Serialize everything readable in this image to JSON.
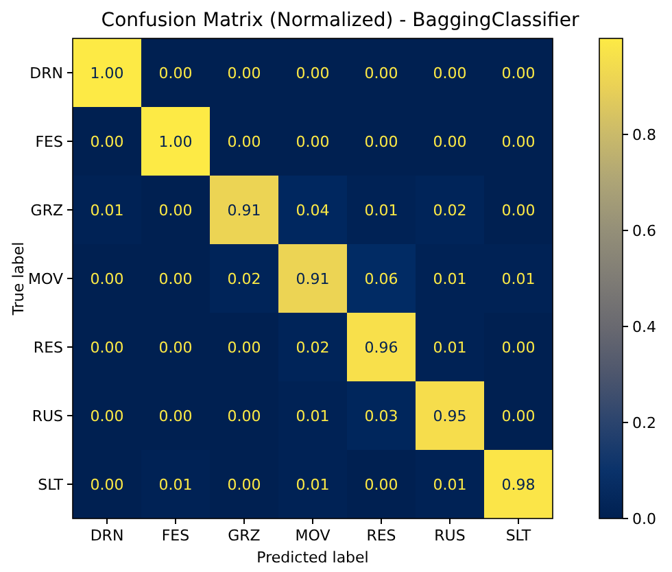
{
  "chart_data": {
    "type": "heatmap",
    "title": "Confusion Matrix (Normalized) - BaggingClassifier",
    "xlabel": "Predicted label",
    "ylabel": "True label",
    "categories": [
      "DRN",
      "FES",
      "GRZ",
      "MOV",
      "RES",
      "RUS",
      "SLT"
    ],
    "y_categories": [
      "DRN",
      "FES",
      "GRZ",
      "MOV",
      "RES",
      "RUS",
      "SLT"
    ],
    "cells": [
      [
        1.0,
        0.0,
        0.0,
        0.0,
        0.0,
        0.0,
        0.0
      ],
      [
        0.0,
        1.0,
        0.0,
        0.0,
        0.0,
        0.0,
        0.0
      ],
      [
        0.01,
        0.0,
        0.91,
        0.04,
        0.01,
        0.02,
        0.0
      ],
      [
        0.0,
        0.0,
        0.02,
        0.91,
        0.06,
        0.01,
        0.01
      ],
      [
        0.0,
        0.0,
        0.0,
        0.02,
        0.96,
        0.01,
        0.0
      ],
      [
        0.0,
        0.0,
        0.0,
        0.01,
        0.03,
        0.95,
        0.0
      ],
      [
        0.0,
        0.01,
        0.0,
        0.01,
        0.0,
        0.01,
        0.98
      ]
    ],
    "cell_labels": [
      [
        "1.00",
        "0.00",
        "0.00",
        "0.00",
        "0.00",
        "0.00",
        "0.00"
      ],
      [
        "0.00",
        "1.00",
        "0.00",
        "0.00",
        "0.00",
        "0.00",
        "0.00"
      ],
      [
        "0.01",
        "0.00",
        "0.91",
        "0.04",
        "0.01",
        "0.02",
        "0.00"
      ],
      [
        "0.00",
        "0.00",
        "0.02",
        "0.91",
        "0.06",
        "0.01",
        "0.01"
      ],
      [
        "0.00",
        "0.00",
        "0.00",
        "0.02",
        "0.96",
        "0.01",
        "0.00"
      ],
      [
        "0.00",
        "0.00",
        "0.00",
        "0.01",
        "0.03",
        "0.95",
        "0.00"
      ],
      [
        "0.00",
        "0.01",
        "0.00",
        "0.01",
        "0.00",
        "0.01",
        "0.98"
      ]
    ],
    "clim": [
      0,
      1.0
    ],
    "cticks": [
      {
        "value": 0,
        "label": "0.0"
      },
      0.2,
      0.4,
      0.6,
      0.8
    ]
  }
}
